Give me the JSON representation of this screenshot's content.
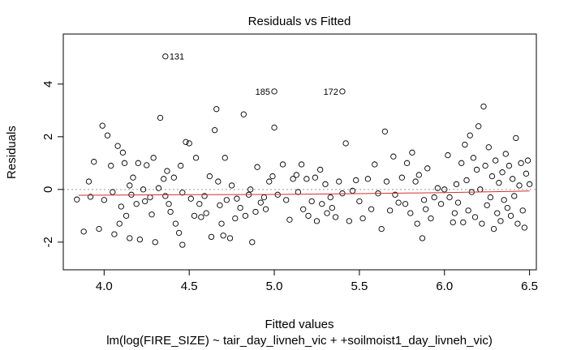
{
  "chart_data": {
    "type": "scatter",
    "title": "Residuals vs Fitted",
    "xlabel": "Fitted values",
    "subtitle": "lm(log(FIRE_SIZE) ~ tair_day_livneh_vic + +soilmoist1_day_livneh_vic)",
    "ylabel": "Residuals",
    "xlim": [
      3.76,
      6.54
    ],
    "ylim": [
      -3.05,
      5.9
    ],
    "x_ticks": [
      4.0,
      4.5,
      5.0,
      5.5,
      6.0,
      6.5
    ],
    "x_tick_labels": [
      "4.0",
      "4.5",
      "5.0",
      "5.5",
      "6.0",
      "6.5"
    ],
    "y_ticks": [
      -2,
      0,
      2,
      4
    ],
    "y_tick_labels": [
      "-2",
      "0",
      "2",
      "4"
    ],
    "reference_line_y": 0,
    "point_style": "open-circle",
    "smooth_line_color": "#d32f2f",
    "labeled_points": [
      {
        "label": "131",
        "x": 4.36,
        "y": 5.05
      },
      {
        "label": "185",
        "x": 5.0,
        "y": 3.72
      },
      {
        "label": "172",
        "x": 5.4,
        "y": 3.72
      }
    ],
    "smooth_line": [
      {
        "x": 3.85,
        "y": -0.22
      },
      {
        "x": 4.5,
        "y": -0.2
      },
      {
        "x": 5.0,
        "y": -0.19
      },
      {
        "x": 5.5,
        "y": -0.16
      },
      {
        "x": 6.0,
        "y": -0.12
      },
      {
        "x": 6.5,
        "y": -0.06
      }
    ],
    "points": [
      {
        "x": 3.84,
        "y": -0.38
      },
      {
        "x": 3.88,
        "y": -1.6
      },
      {
        "x": 3.91,
        "y": 0.3
      },
      {
        "x": 3.92,
        "y": -0.28
      },
      {
        "x": 3.94,
        "y": 1.05
      },
      {
        "x": 3.97,
        "y": -1.5
      },
      {
        "x": 3.99,
        "y": 2.42
      },
      {
        "x": 4.0,
        "y": -0.4
      },
      {
        "x": 4.02,
        "y": 2.05
      },
      {
        "x": 4.04,
        "y": 0.9
      },
      {
        "x": 4.05,
        "y": -0.1
      },
      {
        "x": 4.06,
        "y": -1.7
      },
      {
        "x": 4.08,
        "y": 1.65
      },
      {
        "x": 4.09,
        "y": -1.3
      },
      {
        "x": 4.1,
        "y": -0.65
      },
      {
        "x": 4.11,
        "y": 1.4
      },
      {
        "x": 4.12,
        "y": 1.0
      },
      {
        "x": 4.13,
        "y": -1.0
      },
      {
        "x": 4.15,
        "y": 0.15
      },
      {
        "x": 4.16,
        "y": -0.2
      },
      {
        "x": 4.15,
        "y": -1.85
      },
      {
        "x": 4.17,
        "y": 0.45
      },
      {
        "x": 4.19,
        "y": -0.55
      },
      {
        "x": 4.2,
        "y": 1.0
      },
      {
        "x": 4.21,
        "y": -1.9
      },
      {
        "x": 4.23,
        "y": 0.0
      },
      {
        "x": 4.24,
        "y": -0.45
      },
      {
        "x": 4.25,
        "y": 0.92
      },
      {
        "x": 4.27,
        "y": -0.3
      },
      {
        "x": 4.28,
        "y": -0.95
      },
      {
        "x": 4.29,
        "y": 1.2
      },
      {
        "x": 4.3,
        "y": -2.0
      },
      {
        "x": 4.32,
        "y": 0.05
      },
      {
        "x": 4.33,
        "y": 2.72
      },
      {
        "x": 4.35,
        "y": 0.4
      },
      {
        "x": 4.36,
        "y": -0.25
      },
      {
        "x": 4.37,
        "y": 0.7
      },
      {
        "x": 4.38,
        "y": -0.55
      },
      {
        "x": 4.39,
        "y": -0.85
      },
      {
        "x": 4.41,
        "y": 0.45
      },
      {
        "x": 4.42,
        "y": -1.3
      },
      {
        "x": 4.44,
        "y": -1.65
      },
      {
        "x": 4.45,
        "y": 0.9
      },
      {
        "x": 4.46,
        "y": -0.12
      },
      {
        "x": 4.46,
        "y": -2.1
      },
      {
        "x": 4.48,
        "y": 1.8
      },
      {
        "x": 4.5,
        "y": 1.75
      },
      {
        "x": 4.51,
        "y": -0.35
      },
      {
        "x": 4.53,
        "y": -1.0
      },
      {
        "x": 4.54,
        "y": 1.2
      },
      {
        "x": 4.56,
        "y": -0.55
      },
      {
        "x": 4.57,
        "y": -1.05
      },
      {
        "x": 4.59,
        "y": -0.25
      },
      {
        "x": 4.6,
        "y": -0.9
      },
      {
        "x": 4.62,
        "y": 0.5
      },
      {
        "x": 4.63,
        "y": -1.8
      },
      {
        "x": 4.65,
        "y": 2.25
      },
      {
        "x": 4.66,
        "y": 3.05
      },
      {
        "x": 4.67,
        "y": 0.3
      },
      {
        "x": 4.68,
        "y": -0.6
      },
      {
        "x": 4.69,
        "y": -1.3
      },
      {
        "x": 4.7,
        "y": -1.75
      },
      {
        "x": 4.71,
        "y": 1.2
      },
      {
        "x": 4.72,
        "y": -0.4
      },
      {
        "x": 4.74,
        "y": -1.85
      },
      {
        "x": 4.75,
        "y": 0.15
      },
      {
        "x": 4.77,
        "y": -1.1
      },
      {
        "x": 4.78,
        "y": -0.35
      },
      {
        "x": 4.8,
        "y": -0.7
      },
      {
        "x": 4.82,
        "y": 2.85
      },
      {
        "x": 4.83,
        "y": -1.0
      },
      {
        "x": 4.85,
        "y": -0.2
      },
      {
        "x": 4.86,
        "y": 0.0
      },
      {
        "x": 4.87,
        "y": -2.0
      },
      {
        "x": 4.89,
        "y": -0.85
      },
      {
        "x": 4.9,
        "y": 0.85
      },
      {
        "x": 4.92,
        "y": -0.5
      },
      {
        "x": 4.94,
        "y": -0.3
      },
      {
        "x": 4.95,
        "y": -0.75
      },
      {
        "x": 4.97,
        "y": 0.3
      },
      {
        "x": 4.99,
        "y": 0.5
      },
      {
        "x": 5.0,
        "y": 2.35
      },
      {
        "x": 5.02,
        "y": -0.2
      },
      {
        "x": 5.05,
        "y": 0.95
      },
      {
        "x": 5.07,
        "y": -0.4
      },
      {
        "x": 5.09,
        "y": -1.15
      },
      {
        "x": 5.11,
        "y": 0.4
      },
      {
        "x": 5.13,
        "y": 0.55
      },
      {
        "x": 5.14,
        "y": -0.1
      },
      {
        "x": 5.16,
        "y": 0.95
      },
      {
        "x": 5.17,
        "y": -0.75
      },
      {
        "x": 5.19,
        "y": 0.4
      },
      {
        "x": 5.2,
        "y": -1.0
      },
      {
        "x": 5.22,
        "y": -0.45
      },
      {
        "x": 5.24,
        "y": 0.45
      },
      {
        "x": 5.25,
        "y": -1.2
      },
      {
        "x": 5.27,
        "y": 0.75
      },
      {
        "x": 5.28,
        "y": -0.55
      },
      {
        "x": 5.3,
        "y": 0.2
      },
      {
        "x": 5.31,
        "y": -0.9
      },
      {
        "x": 5.33,
        "y": -0.3
      },
      {
        "x": 5.34,
        "y": -0.7
      },
      {
        "x": 5.36,
        "y": -1.05
      },
      {
        "x": 5.38,
        "y": 0.3
      },
      {
        "x": 5.4,
        "y": -0.15
      },
      {
        "x": 5.42,
        "y": 1.75
      },
      {
        "x": 5.44,
        "y": -1.2
      },
      {
        "x": 5.46,
        "y": -0.05
      },
      {
        "x": 5.48,
        "y": 0.35
      },
      {
        "x": 5.5,
        "y": -0.45
      },
      {
        "x": 5.52,
        "y": -1.1
      },
      {
        "x": 5.55,
        "y": 0.4
      },
      {
        "x": 5.57,
        "y": -0.75
      },
      {
        "x": 5.59,
        "y": 0.95
      },
      {
        "x": 5.61,
        "y": -0.15
      },
      {
        "x": 5.63,
        "y": -1.5
      },
      {
        "x": 5.65,
        "y": 2.2
      },
      {
        "x": 5.66,
        "y": 0.3
      },
      {
        "x": 5.68,
        "y": -0.8
      },
      {
        "x": 5.7,
        "y": 1.25
      },
      {
        "x": 5.71,
        "y": -0.2
      },
      {
        "x": 5.73,
        "y": -0.5
      },
      {
        "x": 5.75,
        "y": 0.45
      },
      {
        "x": 5.77,
        "y": -0.55
      },
      {
        "x": 5.78,
        "y": 1.0
      },
      {
        "x": 5.8,
        "y": -0.9
      },
      {
        "x": 5.81,
        "y": 1.4
      },
      {
        "x": 5.83,
        "y": 0.3
      },
      {
        "x": 5.84,
        "y": -1.3
      },
      {
        "x": 5.85,
        "y": 0.55
      },
      {
        "x": 5.87,
        "y": -1.85
      },
      {
        "x": 5.88,
        "y": -0.4
      },
      {
        "x": 5.89,
        "y": -0.75
      },
      {
        "x": 5.9,
        "y": 0.8
      },
      {
        "x": 5.92,
        "y": -1.1
      },
      {
        "x": 5.94,
        "y": -0.3
      },
      {
        "x": 5.96,
        "y": 0.05
      },
      {
        "x": 5.98,
        "y": -0.55
      },
      {
        "x": 6.0,
        "y": 0.0
      },
      {
        "x": 6.02,
        "y": 1.3
      },
      {
        "x": 6.03,
        "y": -0.3
      },
      {
        "x": 6.05,
        "y": -1.25
      },
      {
        "x": 6.06,
        "y": -0.9
      },
      {
        "x": 6.07,
        "y": 0.2
      },
      {
        "x": 6.08,
        "y": -0.5
      },
      {
        "x": 6.1,
        "y": 1.0
      },
      {
        "x": 6.11,
        "y": -1.25
      },
      {
        "x": 6.12,
        "y": 1.7
      },
      {
        "x": 6.13,
        "y": 0.35
      },
      {
        "x": 6.14,
        "y": -0.8
      },
      {
        "x": 6.15,
        "y": 2.05
      },
      {
        "x": 6.16,
        "y": -0.1
      },
      {
        "x": 6.17,
        "y": 1.2
      },
      {
        "x": 6.18,
        "y": -1.05
      },
      {
        "x": 6.19,
        "y": 0.75
      },
      {
        "x": 6.2,
        "y": 2.4
      },
      {
        "x": 6.21,
        "y": 0.0
      },
      {
        "x": 6.22,
        "y": -1.3
      },
      {
        "x": 6.23,
        "y": 3.15
      },
      {
        "x": 6.24,
        "y": 0.9
      },
      {
        "x": 6.25,
        "y": -0.6
      },
      {
        "x": 6.26,
        "y": 1.6
      },
      {
        "x": 6.27,
        "y": -0.3
      },
      {
        "x": 6.28,
        "y": 0.5
      },
      {
        "x": 6.29,
        "y": -1.5
      },
      {
        "x": 6.3,
        "y": 1.1
      },
      {
        "x": 6.31,
        "y": -0.9
      },
      {
        "x": 6.32,
        "y": 0.25
      },
      {
        "x": 6.33,
        "y": -1.2
      },
      {
        "x": 6.34,
        "y": 0.65
      },
      {
        "x": 6.35,
        "y": -0.4
      },
      {
        "x": 6.36,
        "y": 1.35
      },
      {
        "x": 6.37,
        "y": -0.7
      },
      {
        "x": 6.38,
        "y": 0.9
      },
      {
        "x": 6.39,
        "y": -1.0
      },
      {
        "x": 6.4,
        "y": 0.4
      },
      {
        "x": 6.41,
        "y": -0.25
      },
      {
        "x": 6.42,
        "y": 1.95
      },
      {
        "x": 6.43,
        "y": -1.3
      },
      {
        "x": 6.44,
        "y": 0.15
      },
      {
        "x": 6.45,
        "y": 1.0
      },
      {
        "x": 6.46,
        "y": -0.8
      },
      {
        "x": 6.47,
        "y": -1.45
      },
      {
        "x": 6.48,
        "y": 0.6
      },
      {
        "x": 6.49,
        "y": 1.1
      },
      {
        "x": 6.5,
        "y": 0.2
      }
    ]
  }
}
